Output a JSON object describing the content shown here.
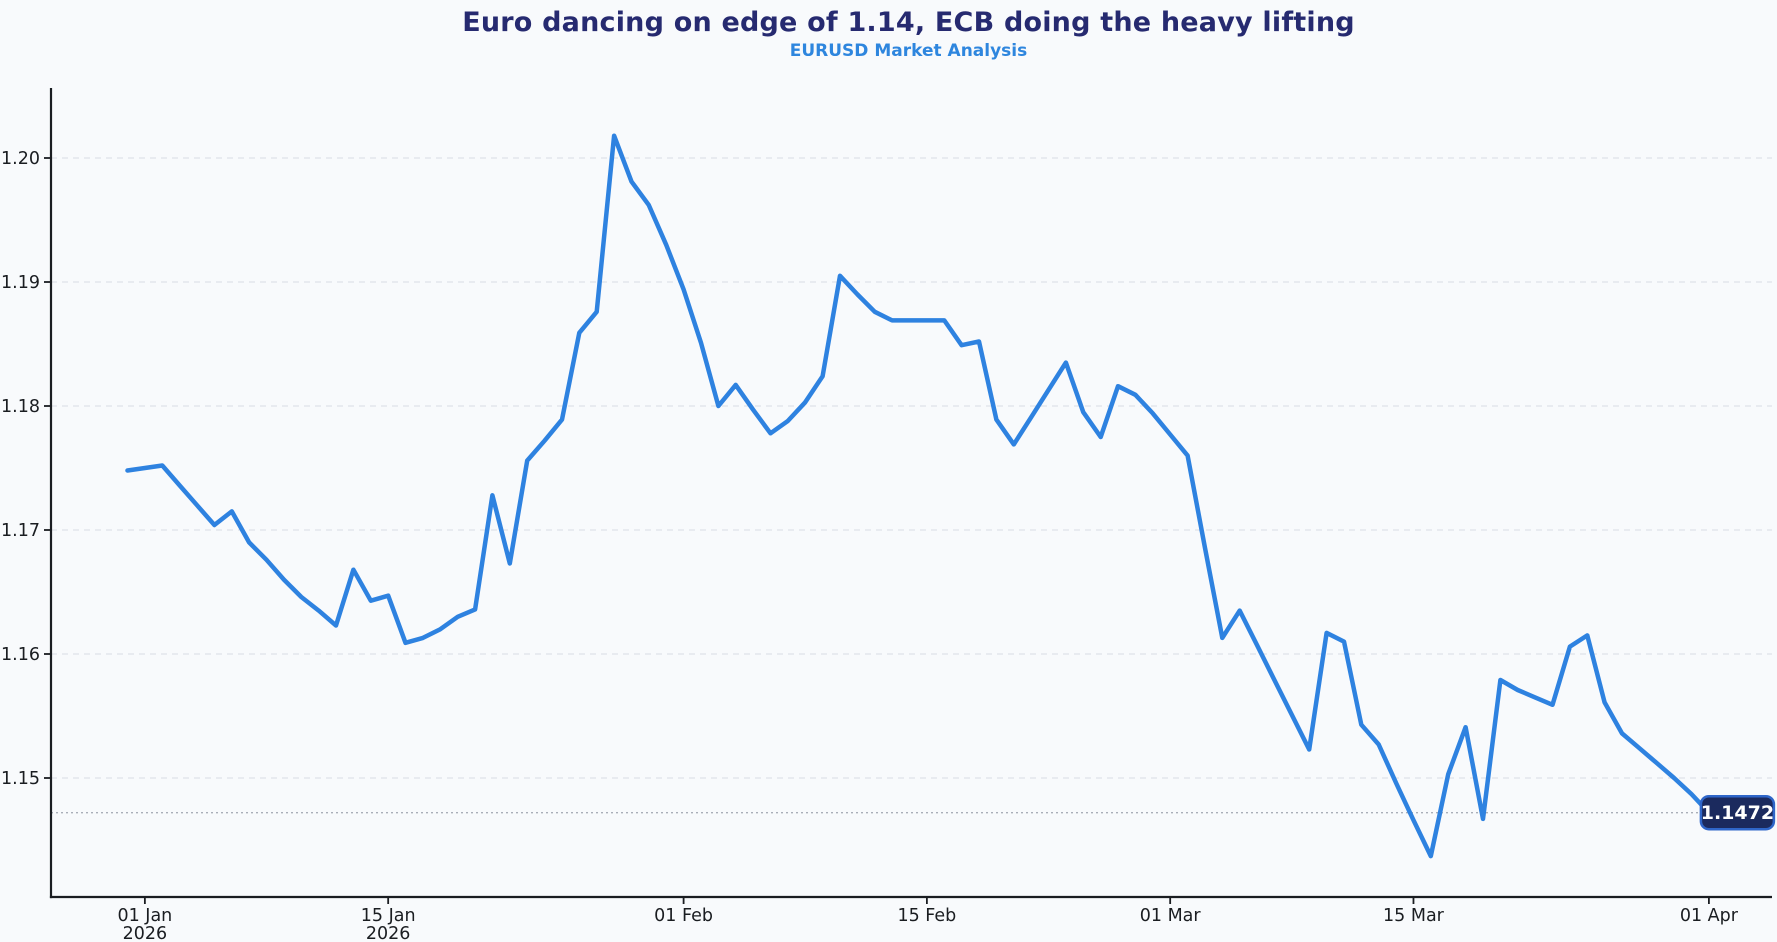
{
  "page": {
    "background": "#f8fafc"
  },
  "header": {
    "title": "Euro dancing on edge of 1.14, ECB doing the heavy lifting",
    "subtitle": "EURUSD Market Analysis",
    "title_color": "#262a70",
    "subtitle_color": "#2e86de"
  },
  "chart_data": {
    "type": "line",
    "title": "Euro dancing on edge of 1.14, ECB doing the heavy lifting",
    "subtitle": "EURUSD Market Analysis",
    "series_name": "EURUSD",
    "frequency": "daily",
    "start_date": "2025-12-31",
    "end_date": "2026-04-01",
    "xlabel": "",
    "ylabel": "",
    "grid": true,
    "ylim": [
      1.14,
      1.206
    ],
    "line_color": "#2e82e0",
    "values": [
      1.1748,
      1.175,
      1.1752,
      1.1736,
      1.172,
      1.1704,
      1.1715,
      1.169,
      1.1676,
      1.166,
      1.1646,
      1.1635,
      1.1623,
      1.1668,
      1.1643,
      1.1647,
      1.1609,
      1.1613,
      1.162,
      1.163,
      1.1636,
      1.1728,
      1.1673,
      1.1756,
      1.1772,
      1.1789,
      1.1859,
      1.1876,
      1.2018,
      1.1981,
      1.1962,
      1.193,
      1.1894,
      1.1851,
      1.18,
      1.1817,
      1.1797,
      1.1778,
      1.1788,
      1.1803,
      1.1824,
      1.1905,
      1.189,
      1.1876,
      1.1869,
      1.1869,
      1.1869,
      1.1869,
      1.1849,
      1.1852,
      1.1789,
      1.1769,
      1.1791,
      1.1813,
      1.1835,
      1.1795,
      1.1775,
      1.1816,
      1.1809,
      1.1794,
      1.1777,
      1.176,
      1.1686,
      1.1613,
      1.1635,
      1.1607,
      1.1579,
      1.1551,
      1.1523,
      1.1617,
      1.161,
      1.1543,
      1.1527,
      1.1496,
      1.1466,
      1.1437,
      1.1503,
      1.1541,
      1.1467,
      1.1579,
      1.1571,
      1.1565,
      1.1559,
      1.1606,
      1.1615,
      1.1561,
      1.1536,
      1.1524,
      1.1512,
      1.15,
      1.1487,
      1.1472
    ],
    "y_ticks": [
      {
        "value": 1.2,
        "label": "1.20"
      },
      {
        "value": 1.19,
        "label": "1.19"
      },
      {
        "value": 1.18,
        "label": "1.18"
      },
      {
        "value": 1.17,
        "label": "1.17"
      },
      {
        "value": 1.16,
        "label": "1.16"
      },
      {
        "value": 1.15,
        "label": "1.15"
      }
    ],
    "x_ticks": [
      {
        "label": "01 Jan",
        "sublabel": "2026",
        "index": 1
      },
      {
        "label": "15 Jan",
        "sublabel": "2026",
        "index": 15
      },
      {
        "label": "01 Feb",
        "sublabel": "",
        "index": 32
      },
      {
        "label": "15 Feb",
        "sublabel": "",
        "index": 46
      },
      {
        "label": "01 Mar",
        "sublabel": "",
        "index": 60
      },
      {
        "label": "15 Mar",
        "sublabel": "",
        "index": 74
      },
      {
        "label": "01 Apr",
        "sublabel": "",
        "index": 91
      }
    ],
    "current_price": 1.1472,
    "current_price_label": "1.1472",
    "label_bg": "#1b2a5e",
    "label_border": "#2f66c9",
    "label_text_color": "#ffffff"
  }
}
